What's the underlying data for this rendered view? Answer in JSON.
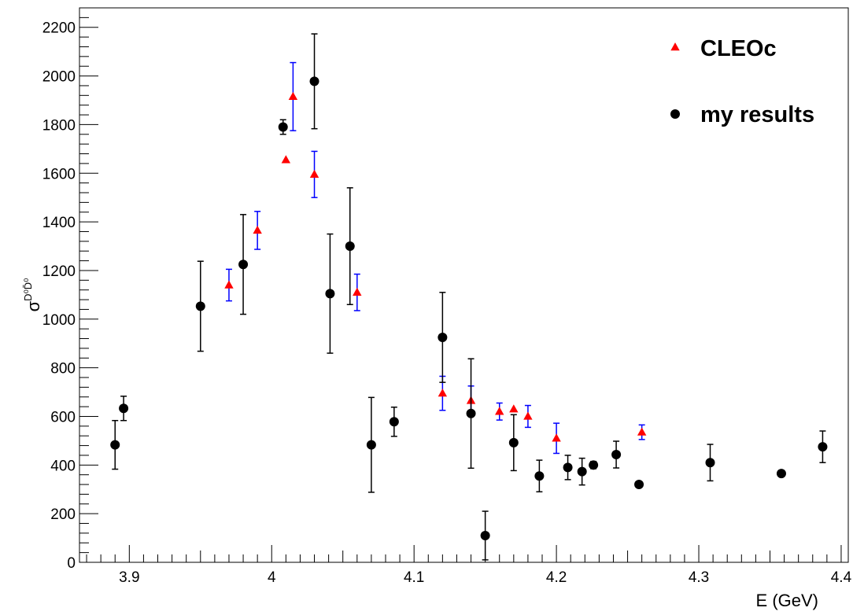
{
  "chart_data": {
    "type": "scatter",
    "title": "",
    "xlabel": "E (GeV)",
    "ylabel_base": "σ",
    "ylabel_sup": "D⁰D̄⁰",
    "xlim": [
      3.865,
      4.405
    ],
    "ylim": [
      0,
      2280
    ],
    "x_ticks": [
      3.9,
      4.0,
      4.1,
      4.2,
      4.3,
      4.4
    ],
    "x_tick_labels": [
      "3.9",
      "4",
      "4.1",
      "4.2",
      "4.3",
      "4.4"
    ],
    "y_ticks": [
      0,
      200,
      400,
      600,
      800,
      1000,
      1200,
      1400,
      1600,
      1800,
      2000,
      2200
    ],
    "y_tick_labels": [
      "0",
      "200",
      "400",
      "600",
      "800",
      "1000",
      "1200",
      "1400",
      "1600",
      "1800",
      "2000",
      "2200"
    ],
    "grid": false,
    "legend_position": "top-right",
    "series": [
      {
        "name": "CLEOc",
        "marker": "triangle",
        "color": "#ff0000",
        "error_color": "#0000ff",
        "points": [
          {
            "x": 3.97,
            "y": 1140,
            "err": 65
          },
          {
            "x": 3.99,
            "y": 1365,
            "err": 78
          },
          {
            "x": 4.01,
            "y": 1655,
            "err": 0
          },
          {
            "x": 4.015,
            "y": 1915,
            "err": 140
          },
          {
            "x": 4.03,
            "y": 1595,
            "err": 95
          },
          {
            "x": 4.06,
            "y": 1110,
            "err": 75
          },
          {
            "x": 4.12,
            "y": 695,
            "err": 70
          },
          {
            "x": 4.14,
            "y": 665,
            "err": 60
          },
          {
            "x": 4.16,
            "y": 620,
            "err": 35
          },
          {
            "x": 4.17,
            "y": 630,
            "err": 0
          },
          {
            "x": 4.18,
            "y": 600,
            "err": 45
          },
          {
            "x": 4.2,
            "y": 510,
            "err": 62
          },
          {
            "x": 4.26,
            "y": 535,
            "err": 30
          }
        ]
      },
      {
        "name": "my results",
        "marker": "circle",
        "color": "#000000",
        "error_color": "#000000",
        "points": [
          {
            "x": 3.89,
            "y": 483,
            "err": 100
          },
          {
            "x": 3.896,
            "y": 633,
            "err": 50
          },
          {
            "x": 3.95,
            "y": 1053,
            "err": 185
          },
          {
            "x": 3.98,
            "y": 1225,
            "err": 205
          },
          {
            "x": 4.008,
            "y": 1790,
            "err": 30
          },
          {
            "x": 4.03,
            "y": 1978,
            "err": 195
          },
          {
            "x": 4.041,
            "y": 1105,
            "err": 245
          },
          {
            "x": 4.055,
            "y": 1300,
            "err": 240
          },
          {
            "x": 4.07,
            "y": 483,
            "err": 195
          },
          {
            "x": 4.086,
            "y": 578,
            "err": 60
          },
          {
            "x": 4.12,
            "y": 925,
            "err": 185
          },
          {
            "x": 4.14,
            "y": 612,
            "err": 225
          },
          {
            "x": 4.15,
            "y": 110,
            "err": 100
          },
          {
            "x": 4.17,
            "y": 492,
            "err": 115
          },
          {
            "x": 4.188,
            "y": 355,
            "err": 65
          },
          {
            "x": 4.208,
            "y": 390,
            "err": 50
          },
          {
            "x": 4.218,
            "y": 373,
            "err": 55
          },
          {
            "x": 4.226,
            "y": 400,
            "err": 15
          },
          {
            "x": 4.242,
            "y": 443,
            "err": 55
          },
          {
            "x": 4.258,
            "y": 320,
            "err": 10
          },
          {
            "x": 4.308,
            "y": 410,
            "err": 75
          },
          {
            "x": 4.358,
            "y": 365,
            "err": 10
          },
          {
            "x": 4.387,
            "y": 475,
            "err": 65
          }
        ]
      }
    ]
  }
}
